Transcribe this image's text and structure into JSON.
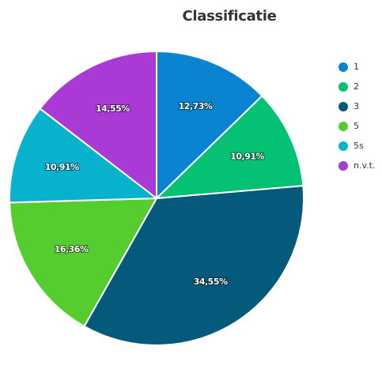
{
  "chart_data": {
    "type": "pie",
    "title": "Classificatie",
    "legend_position": "right",
    "slices": [
      {
        "name": "1",
        "value": 12.73,
        "label": "12,73%",
        "color": "#0a84d0"
      },
      {
        "name": "2",
        "value": 10.91,
        "label": "10,91%",
        "color": "#05c174"
      },
      {
        "name": "3",
        "value": 34.55,
        "label": "34,55%",
        "color": "#055a7b"
      },
      {
        "name": "5",
        "value": 16.36,
        "label": "16,36%",
        "color": "#55cd2e"
      },
      {
        "name": "5s",
        "value": 10.91,
        "label": "10,91%",
        "color": "#08b1cc"
      },
      {
        "name": "n.v.t.",
        "value": 14.55,
        "label": "14,55%",
        "color": "#aa3ad6"
      }
    ]
  }
}
